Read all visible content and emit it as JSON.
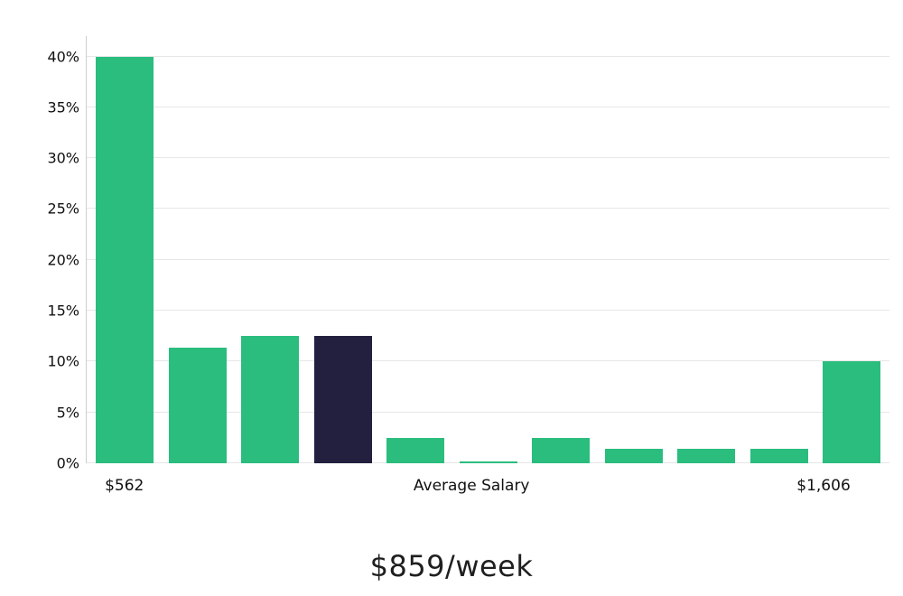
{
  "chart_data": {
    "type": "bar",
    "title": "$859/week",
    "values": [
      40,
      11.4,
      12.5,
      12.5,
      2.5,
      0.15,
      2.5,
      1.4,
      1.4,
      1.4,
      10
    ],
    "highlight_index": 3,
    "bar_color": "#2abd7e",
    "highlight_color": "#221f3f",
    "ymax": 42,
    "yticks": [
      0,
      5,
      10,
      15,
      20,
      25,
      30,
      35,
      40
    ],
    "ytick_labels": [
      "0%",
      "5%",
      "10%",
      "15%",
      "20%",
      "25%",
      "30%",
      "35%",
      "40%"
    ],
    "xtick_labels": [
      {
        "label": "$562",
        "pos": 4.8
      },
      {
        "label": "Average Salary",
        "pos": 48.0
      },
      {
        "label": "$1,606",
        "pos": 91.8
      }
    ],
    "grid": true,
    "legend": "none",
    "background": "#ffffff"
  }
}
